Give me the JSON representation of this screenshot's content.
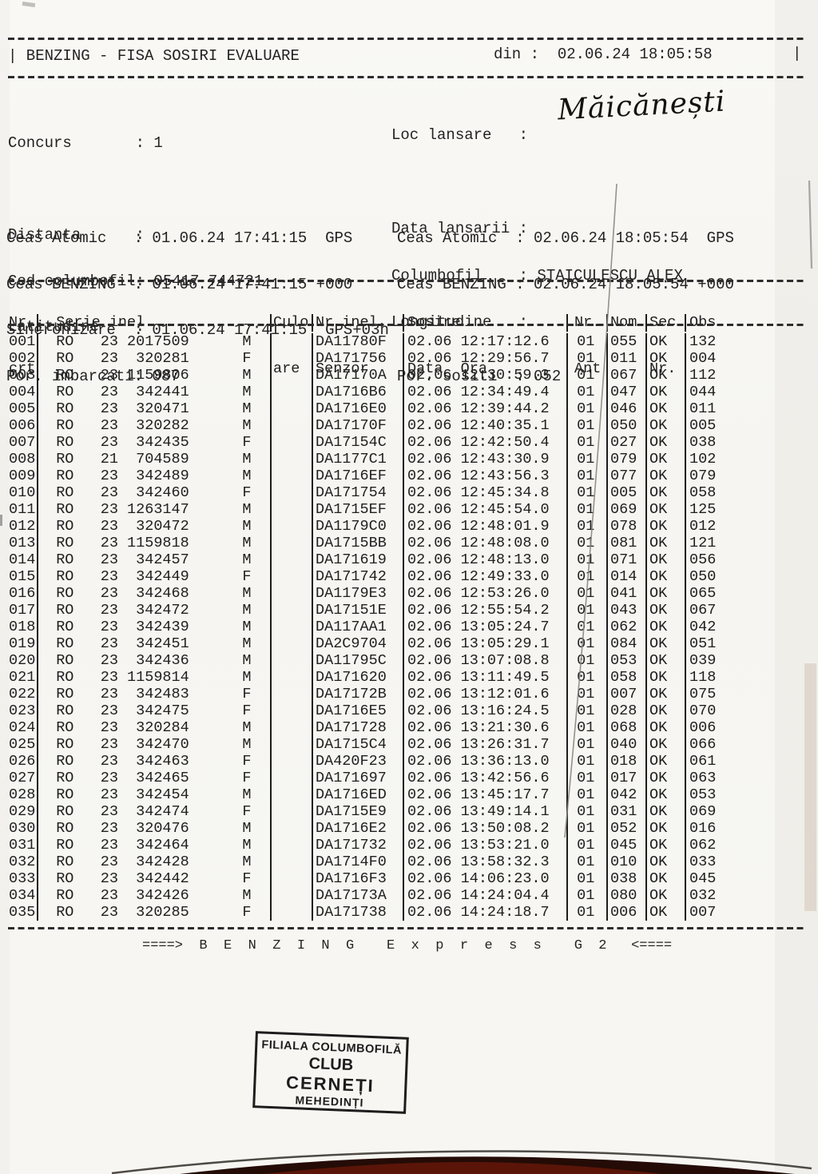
{
  "header": {
    "left": "| BENZING - FISA SOSIRI EVALUARE",
    "din": "din :  02.06.24 18:05:58",
    "bar": "|"
  },
  "info_left": [
    "Concurs       : 1",
    "",
    "Distanta      :",
    "Cod columbofil: 05417 744721",
    "Latitudine    :"
  ],
  "info_right": [
    "Loc lansare   :",
    "",
    "Data lansarii :",
    "Columbofil    : STAICULESCU ALEX",
    "Longitudine   :"
  ],
  "handwritten_location": "Măicănești",
  "clock_left": [
    "Ceas Atomic   : 01.06.24 17:41:15  GPS",
    "Ceas BENZING  : 01.06.24 17:41:15 +000",
    "Sincronizare  : 01.06.24 17:41:15  GPS+03h",
    "Por. imbarcati: 087"
  ],
  "clock_right": [
    "Ceas Atomic  : 02.06.24 18:05:54  GPS",
    "Ceas BENZING : 02.06.24 18:05:54 +000",
    "",
    "Por. sositi  : 052"
  ],
  "table": {
    "header": {
      "crt": [
        "Nr.",
        "crt"
      ],
      "serie": [
        "  Serie inel",
        ""
      ],
      "culoare": [
        "Culo",
        "are"
      ],
      "senzor": [
        "Nr.inel",
        "Senzor"
      ],
      "sosire": [
        "Sosire",
        "Data  Ora"
      ],
      "ant": [
        "Nr.",
        "Ant"
      ],
      "nom": [
        "Nom",
        ""
      ],
      "sec": [
        "Sec",
        "Nr."
      ],
      "obs": [
        "Obs.",
        ""
      ]
    },
    "rows": [
      [
        "001",
        "RO",
        "23",
        "2017509",
        "M",
        "DA11780F",
        "02.06",
        "12:17:12.6",
        "01",
        "055",
        "OK",
        "132"
      ],
      [
        "002",
        "RO",
        "23",
        "320281",
        "F",
        "DA171756",
        "02.06",
        "12:29:56.7",
        "01",
        "011",
        "OK",
        "004"
      ],
      [
        "003",
        "RO",
        "23",
        "1159806",
        "M",
        "DA17170A",
        "02.06",
        "12:30:59.3",
        "01",
        "067",
        "OK",
        "112"
      ],
      [
        "004",
        "RO",
        "23",
        "342441",
        "M",
        "DA1716B6",
        "02.06",
        "12:34:49.4",
        "01",
        "047",
        "OK",
        "044"
      ],
      [
        "005",
        "RO",
        "23",
        "320471",
        "M",
        "DA1716E0",
        "02.06",
        "12:39:44.2",
        "01",
        "046",
        "OK",
        "011"
      ],
      [
        "006",
        "RO",
        "23",
        "320282",
        "M",
        "DA17170F",
        "02.06",
        "12:40:35.1",
        "01",
        "050",
        "OK",
        "005"
      ],
      [
        "007",
        "RO",
        "23",
        "342435",
        "F",
        "DA17154C",
        "02.06",
        "12:42:50.4",
        "01",
        "027",
        "OK",
        "038"
      ],
      [
        "008",
        "RO",
        "21",
        "704589",
        "M",
        "DA1177C1",
        "02.06",
        "12:43:30.9",
        "01",
        "079",
        "OK",
        "102"
      ],
      [
        "009",
        "RO",
        "23",
        "342489",
        "M",
        "DA1716EF",
        "02.06",
        "12:43:56.3",
        "01",
        "077",
        "OK",
        "079"
      ],
      [
        "010",
        "RO",
        "23",
        "342460",
        "F",
        "DA171754",
        "02.06",
        "12:45:34.8",
        "01",
        "005",
        "OK",
        "058"
      ],
      [
        "011",
        "RO",
        "23",
        "1263147",
        "M",
        "DA1715EF",
        "02.06",
        "12:45:54.0",
        "01",
        "069",
        "OK",
        "125"
      ],
      [
        "012",
        "RO",
        "23",
        "320472",
        "M",
        "DA1179C0",
        "02.06",
        "12:48:01.9",
        "01",
        "078",
        "OK",
        "012"
      ],
      [
        "013",
        "RO",
        "23",
        "1159818",
        "M",
        "DA1715BB",
        "02.06",
        "12:48:08.0",
        "01",
        "081",
        "OK",
        "121"
      ],
      [
        "014",
        "RO",
        "23",
        "342457",
        "M",
        "DA171619",
        "02.06",
        "12:48:13.0",
        "01",
        "071",
        "OK",
        "056"
      ],
      [
        "015",
        "RO",
        "23",
        "342449",
        "F",
        "DA171742",
        "02.06",
        "12:49:33.0",
        "01",
        "014",
        "OK",
        "050"
      ],
      [
        "016",
        "RO",
        "23",
        "342468",
        "M",
        "DA1179E3",
        "02.06",
        "12:53:26.0",
        "01",
        "041",
        "OK",
        "065"
      ],
      [
        "017",
        "RO",
        "23",
        "342472",
        "M",
        "DA17151E",
        "02.06",
        "12:55:54.2",
        "01",
        "043",
        "OK",
        "067"
      ],
      [
        "018",
        "RO",
        "23",
        "342439",
        "M",
        "DA117AA1",
        "02.06",
        "13:05:24.7",
        "01",
        "062",
        "OK",
        "042"
      ],
      [
        "019",
        "RO",
        "23",
        "342451",
        "M",
        "DA2C9704",
        "02.06",
        "13:05:29.1",
        "01",
        "084",
        "OK",
        "051"
      ],
      [
        "020",
        "RO",
        "23",
        "342436",
        "M",
        "DA11795C",
        "02.06",
        "13:07:08.8",
        "01",
        "053",
        "OK",
        "039"
      ],
      [
        "021",
        "RO",
        "23",
        "1159814",
        "M",
        "DA171620",
        "02.06",
        "13:11:49.5",
        "01",
        "058",
        "OK",
        "118"
      ],
      [
        "022",
        "RO",
        "23",
        "342483",
        "F",
        "DA17172B",
        "02.06",
        "13:12:01.6",
        "01",
        "007",
        "OK",
        "075"
      ],
      [
        "023",
        "RO",
        "23",
        "342475",
        "F",
        "DA1716E5",
        "02.06",
        "13:16:24.5",
        "01",
        "028",
        "OK",
        "070"
      ],
      [
        "024",
        "RO",
        "23",
        "320284",
        "M",
        "DA171728",
        "02.06",
        "13:21:30.6",
        "01",
        "068",
        "OK",
        "006"
      ],
      [
        "025",
        "RO",
        "23",
        "342470",
        "M",
        "DA1715C4",
        "02.06",
        "13:26:31.7",
        "01",
        "040",
        "OK",
        "066"
      ],
      [
        "026",
        "RO",
        "23",
        "342463",
        "F",
        "DA420F23",
        "02.06",
        "13:36:13.0",
        "01",
        "018",
        "OK",
        "061"
      ],
      [
        "027",
        "RO",
        "23",
        "342465",
        "F",
        "DA171697",
        "02.06",
        "13:42:56.6",
        "01",
        "017",
        "OK",
        "063"
      ],
      [
        "028",
        "RO",
        "23",
        "342454",
        "M",
        "DA1716ED",
        "02.06",
        "13:45:17.7",
        "01",
        "042",
        "OK",
        "053"
      ],
      [
        "029",
        "RO",
        "23",
        "342474",
        "F",
        "DA1715E9",
        "02.06",
        "13:49:14.1",
        "01",
        "031",
        "OK",
        "069"
      ],
      [
        "030",
        "RO",
        "23",
        "320476",
        "M",
        "DA1716E2",
        "02.06",
        "13:50:08.2",
        "01",
        "052",
        "OK",
        "016"
      ],
      [
        "031",
        "RO",
        "23",
        "342464",
        "M",
        "DA171732",
        "02.06",
        "13:53:21.0",
        "01",
        "045",
        "OK",
        "062"
      ],
      [
        "032",
        "RO",
        "23",
        "342428",
        "M",
        "DA1714F0",
        "02.06",
        "13:58:32.3",
        "01",
        "010",
        "OK",
        "033"
      ],
      [
        "033",
        "RO",
        "23",
        "342442",
        "F",
        "DA1716F3",
        "02.06",
        "14:06:23.0",
        "01",
        "038",
        "OK",
        "045"
      ],
      [
        "034",
        "RO",
        "23",
        "342426",
        "M",
        "DA17173A",
        "02.06",
        "14:24:04.4",
        "01",
        "080",
        "OK",
        "032"
      ],
      [
        "035",
        "RO",
        "23",
        "320285",
        "F",
        "DA171738",
        "02.06",
        "14:24:18.7",
        "01",
        "006",
        "OK",
        "007"
      ]
    ]
  },
  "footer": "====>  B  E  N  Z  I  N  G    E  x  p  r  e  s  s    G  2   <====",
  "stamp": {
    "line1": "FILIALA COLUMBOFILĂ",
    "line2": "CLUB",
    "line3": "CERNEȚI",
    "line4": "MEHEDINȚI"
  },
  "colors": {
    "ink": "#1f1f1f",
    "paper": "#f7f6f2",
    "stamp_ink": "#1d1d1d",
    "scan_shadow": "#2f0e07"
  }
}
